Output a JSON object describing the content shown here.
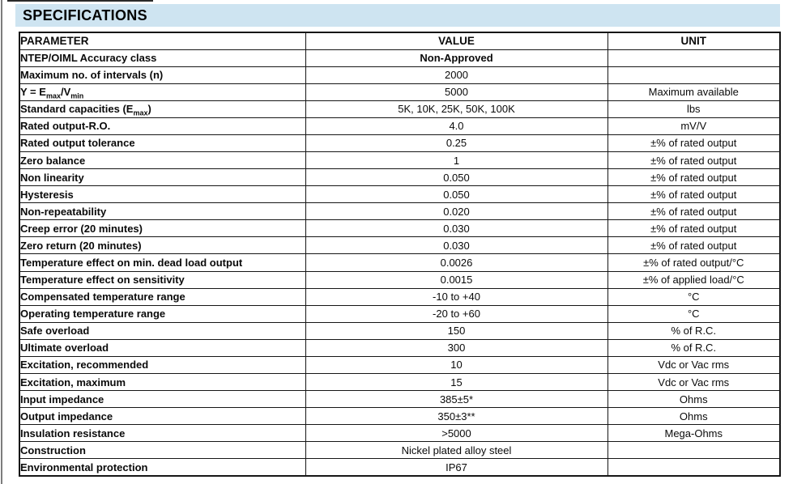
{
  "title": "SPECIFICATIONS",
  "colors": {
    "band_bg": "#cee4f1",
    "border": "#161616",
    "text": "#0a0a0a"
  },
  "table": {
    "columns": [
      "PARAMETER",
      "VALUE",
      "UNIT"
    ],
    "rows": [
      {
        "parameter": "NTEP/OIML Accuracy class",
        "value": "Non-Approved",
        "value_bold": true,
        "unit": ""
      },
      {
        "parameter": "Maximum no. of intervals (n)",
        "value": "2000",
        "unit": ""
      },
      {
        "parameter": "Y = E_{max}/V_{min}",
        "value": "5000",
        "unit": "Maximum available"
      },
      {
        "parameter": "Standard capacities (E_{max})",
        "value": "5K, 10K, 25K, 50K, 100K",
        "unit": "lbs"
      },
      {
        "parameter": "Rated output-R.O.",
        "value": "4.0",
        "unit": "mV/V"
      },
      {
        "parameter": "Rated output tolerance",
        "value": "0.25",
        "unit": "±% of rated output"
      },
      {
        "parameter": "Zero balance",
        "value": "1",
        "unit": "±% of rated output"
      },
      {
        "parameter": "Non linearity",
        "value": "0.050",
        "unit": "±% of rated output"
      },
      {
        "parameter": "Hysteresis",
        "value": "0.050",
        "unit": "±% of rated output"
      },
      {
        "parameter": "Non-repeatability",
        "value": "0.020",
        "unit": "±% of rated output"
      },
      {
        "parameter": "Creep error (20 minutes)",
        "value": "0.030",
        "unit": "±% of rated output"
      },
      {
        "parameter": "Zero return (20 minutes)",
        "value": "0.030",
        "unit": "±% of rated output"
      },
      {
        "parameter": "Temperature effect on min. dead load output",
        "value": "0.0026",
        "unit": "±% of rated output/°C"
      },
      {
        "parameter": "Temperature effect on sensitivity",
        "value": "0.0015",
        "unit": "±% of applied load/°C"
      },
      {
        "parameter": "Compensated temperature range",
        "value": "-10 to +40",
        "unit": "°C"
      },
      {
        "parameter": "Operating temperature range",
        "value": "-20 to +60",
        "unit": "°C"
      },
      {
        "parameter": "Safe overload",
        "value": "150",
        "unit": "% of R.C."
      },
      {
        "parameter": "Ultimate overload",
        "value": "300",
        "unit": "% of R.C."
      },
      {
        "parameter": "Excitation, recommended",
        "value": "10",
        "unit": "Vdc or Vac rms"
      },
      {
        "parameter": "Excitation, maximum",
        "value": "15",
        "unit": "Vdc or Vac rms"
      },
      {
        "parameter": "Input impedance",
        "value": "385±5*",
        "unit": "Ohms"
      },
      {
        "parameter": "Output impedance",
        "value": "350±3**",
        "unit": "Ohms"
      },
      {
        "parameter": "Insulation resistance",
        "value": ">5000",
        "unit": "Mega-Ohms"
      },
      {
        "parameter": "Construction",
        "value": "Nickel plated alloy steel",
        "unit": ""
      },
      {
        "parameter": "Environmental protection",
        "value": "IP67",
        "unit": ""
      }
    ]
  }
}
